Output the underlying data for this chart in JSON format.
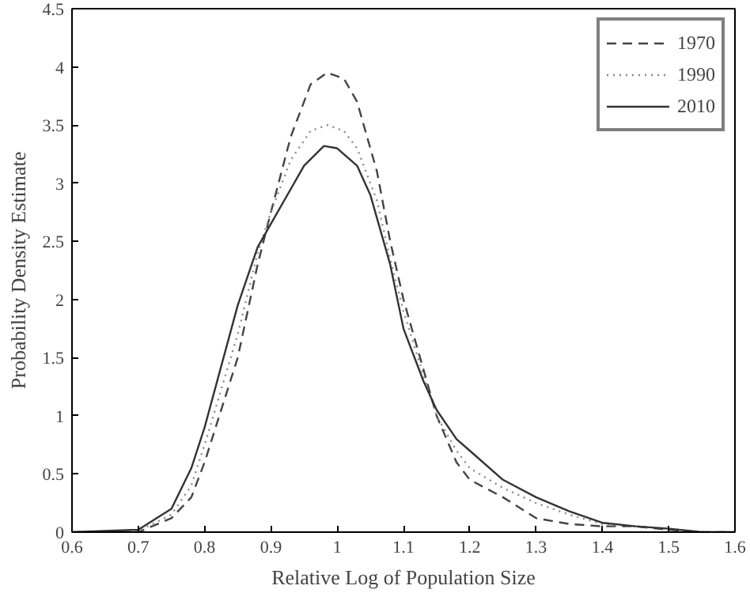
{
  "chart_data": {
    "type": "line",
    "xlabel": "Relative Log of Population Size",
    "ylabel": "Probability Density Estimate",
    "xlim": [
      0.6,
      1.6
    ],
    "ylim": [
      0,
      4.5
    ],
    "xticks": [
      0.6,
      0.7,
      0.8,
      0.9,
      1,
      1.1,
      1.2,
      1.3,
      1.4,
      1.5,
      1.6
    ],
    "yticks": [
      0,
      0.5,
      1,
      1.5,
      2,
      2.5,
      3,
      3.5,
      4,
      4.5
    ],
    "grid": false,
    "legend": "top right",
    "marker": "none",
    "series": [
      {
        "name": "1970",
        "color": "#444444",
        "line_style": "dashed",
        "x": [
          0.6,
          0.7,
          0.75,
          0.78,
          0.8,
          0.85,
          0.88,
          0.9,
          0.93,
          0.96,
          0.985,
          1.01,
          1.03,
          1.06,
          1.08,
          1.1,
          1.13,
          1.15,
          1.18,
          1.2,
          1.25,
          1.3,
          1.35,
          1.4,
          1.45,
          1.5,
          1.55,
          1.6
        ],
        "values": [
          0,
          0.0,
          0.12,
          0.3,
          0.6,
          1.5,
          2.3,
          2.75,
          3.4,
          3.85,
          3.95,
          3.9,
          3.7,
          3.1,
          2.5,
          2.0,
          1.4,
          1.0,
          0.6,
          0.45,
          0.3,
          0.12,
          0.07,
          0.05,
          0.05,
          0.02,
          0.0,
          0
        ]
      },
      {
        "name": "1990",
        "color": "#888888",
        "line_style": "dotted",
        "x": [
          0.6,
          0.7,
          0.75,
          0.78,
          0.8,
          0.85,
          0.88,
          0.9,
          0.93,
          0.96,
          0.985,
          1.01,
          1.03,
          1.06,
          1.08,
          1.1,
          1.13,
          1.15,
          1.18,
          1.2,
          1.25,
          1.3,
          1.35,
          1.4,
          1.45,
          1.5,
          1.55,
          1.6
        ],
        "values": [
          0,
          0.01,
          0.15,
          0.4,
          0.75,
          1.7,
          2.4,
          2.75,
          3.2,
          3.45,
          3.5,
          3.45,
          3.3,
          2.85,
          2.35,
          1.9,
          1.35,
          1.0,
          0.7,
          0.55,
          0.38,
          0.25,
          0.15,
          0.07,
          0.05,
          0.03,
          0.0,
          0
        ]
      },
      {
        "name": "2010",
        "color": "#333333",
        "line_style": "solid",
        "x": [
          0.6,
          0.7,
          0.75,
          0.78,
          0.8,
          0.85,
          0.88,
          0.9,
          0.92,
          0.95,
          0.98,
          1.0,
          1.03,
          1.05,
          1.08,
          1.1,
          1.13,
          1.15,
          1.18,
          1.2,
          1.25,
          1.3,
          1.35,
          1.4,
          1.45,
          1.5,
          1.55,
          1.6
        ],
        "values": [
          0,
          0.02,
          0.2,
          0.55,
          0.9,
          1.95,
          2.45,
          2.65,
          2.85,
          3.15,
          3.32,
          3.3,
          3.15,
          2.9,
          2.3,
          1.75,
          1.3,
          1.05,
          0.8,
          0.7,
          0.45,
          0.3,
          0.18,
          0.08,
          0.05,
          0.03,
          0.0,
          0
        ]
      }
    ]
  }
}
